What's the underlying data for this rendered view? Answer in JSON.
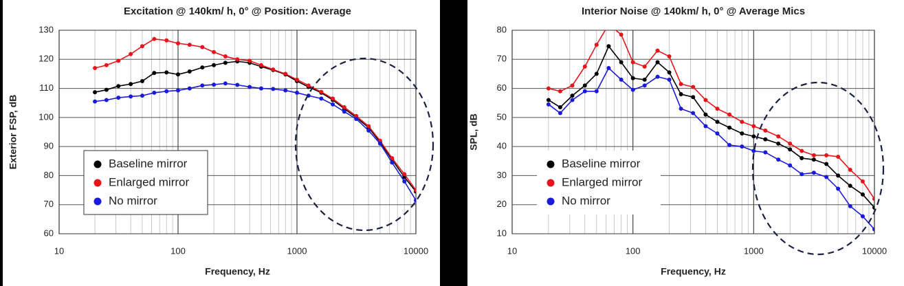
{
  "chart_data": [
    {
      "type": "line",
      "title": "Excitation @ 140km/ h, 0° @ Position: Average",
      "xlabel": "Frequency, Hz",
      "ylabel": "Exterior FSP,  dB",
      "x": [
        20,
        25,
        31.5,
        40,
        50,
        63,
        80,
        100,
        125,
        160,
        200,
        250,
        315,
        400,
        500,
        630,
        800,
        1000,
        1250,
        1600,
        2000,
        2500,
        3150,
        4000,
        5000,
        6300,
        8000,
        10000
      ],
      "xlim": [
        10,
        10000
      ],
      "xticks": [
        10,
        100,
        1000,
        10000
      ],
      "log_x": true,
      "ylim": [
        60,
        130
      ],
      "yticks": [
        60,
        70,
        80,
        90,
        100,
        110,
        120,
        130
      ],
      "grid": true,
      "minor_grid": true,
      "legend": "lower left",
      "series": [
        {
          "name": "Baseline mirror",
          "color": "#000000",
          "values": [
            108.7,
            109.5,
            110.8,
            111.5,
            112.5,
            115.3,
            115.5,
            114.8,
            115.8,
            117.2,
            118,
            118.8,
            119.3,
            118.8,
            117.5,
            116.3,
            114.8,
            112.5,
            110.5,
            108.5,
            106,
            103,
            100,
            96.5,
            91.5,
            85.5,
            79.5,
            74.5
          ]
        },
        {
          "name": "Enlarged mirror",
          "color": "#e8141b",
          "values": [
            117,
            118,
            119.5,
            121.8,
            124.5,
            127,
            126.5,
            125.5,
            125,
            124.2,
            122.5,
            121,
            120,
            119.5,
            118,
            116.5,
            115,
            113,
            111,
            108.8,
            106.5,
            103.5,
            100.5,
            97,
            92,
            86,
            80.5,
            75
          ]
        },
        {
          "name": "No mirror",
          "color": "#1a1adb",
          "values": [
            105.5,
            106,
            106.8,
            107.2,
            107.5,
            108.5,
            109,
            109.3,
            110,
            111,
            111.3,
            111.7,
            111.2,
            110.5,
            110,
            109.8,
            109.3,
            108.5,
            107.5,
            106.5,
            104.5,
            102,
            99.5,
            95.5,
            91,
            84.5,
            78,
            71.5
          ]
        }
      ]
    },
    {
      "type": "line",
      "title": "Interior Noise @ 140km/ h, 0° @ Average Mics",
      "xlabel": "Frequency, Hz",
      "ylabel": "SPL, dB",
      "x": [
        20,
        25,
        31.5,
        40,
        50,
        63,
        80,
        100,
        125,
        160,
        200,
        250,
        315,
        400,
        500,
        630,
        800,
        1000,
        1250,
        1600,
        2000,
        2500,
        3150,
        4000,
        5000,
        6300,
        8000,
        10000
      ],
      "xlim": [
        10,
        10000
      ],
      "xticks": [
        10,
        100,
        1000,
        10000
      ],
      "log_x": true,
      "ylim": [
        10,
        80
      ],
      "yticks": [
        10,
        20,
        30,
        40,
        50,
        60,
        70,
        80
      ],
      "grid": true,
      "minor_grid": true,
      "legend": "lower left",
      "series": [
        {
          "name": "Baseline mirror",
          "color": "#000000",
          "values": [
            56,
            53.5,
            57.5,
            61,
            65,
            74.5,
            69,
            63.5,
            63,
            69,
            65.5,
            58,
            57,
            51,
            48.5,
            46.5,
            44.5,
            43.5,
            42.5,
            41,
            39,
            36,
            35.5,
            34,
            30,
            26.5,
            23.5,
            19
          ]
        },
        {
          "name": "Enlarged mirror",
          "color": "#e8141b",
          "values": [
            60,
            59,
            61,
            67.5,
            75,
            82,
            78.5,
            69,
            67.5,
            73,
            71,
            61.5,
            60.5,
            56,
            53,
            51,
            48.5,
            47,
            45.5,
            43.5,
            41,
            38.5,
            37,
            37,
            36.5,
            32,
            28,
            22
          ]
        },
        {
          "name": "No mirror",
          "color": "#1a1adb",
          "values": [
            54.5,
            51.5,
            56,
            59,
            59,
            67,
            63,
            59.5,
            61,
            64,
            63,
            53,
            51.5,
            47,
            44.5,
            40.5,
            40,
            38.5,
            38,
            35.5,
            33.5,
            30.5,
            31,
            29.5,
            25.5,
            19.5,
            16,
            11.5
          ]
        }
      ]
    }
  ]
}
